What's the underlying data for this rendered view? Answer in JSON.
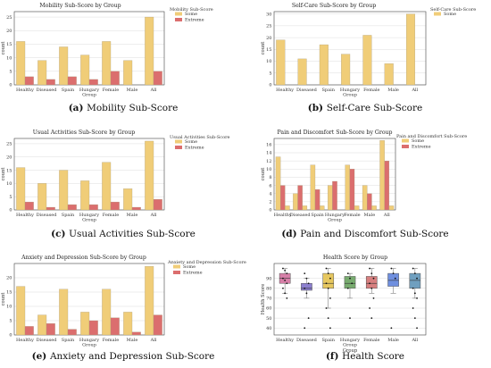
{
  "colors": {
    "some": "#f0cd78",
    "extreme": "#db6e6e",
    "bar_edge": "#a89a7a",
    "grid": "#dddddd",
    "axis": "#444444"
  },
  "chart_data": [
    {
      "type": "bar",
      "title": "Mobility Sub-Score by Group",
      "xlabel": "",
      "ylabel": "count",
      "categories": [
        "Healthy",
        "Diseased",
        "Spain",
        "Hungary Group",
        "Female",
        "Male",
        "All"
      ],
      "series": [
        {
          "name": "Some",
          "values": [
            16,
            9,
            14,
            11,
            16,
            9,
            25
          ]
        },
        {
          "name": "Extreme",
          "values": [
            3,
            2,
            3,
            2,
            5,
            0,
            5
          ]
        }
      ],
      "ylim": [
        0,
        27
      ],
      "yticks": [
        0,
        5,
        10,
        15,
        20,
        25
      ],
      "legend_title": "Mobility Sub-Score",
      "legend_position": "outside-right",
      "caption_label": "(a)",
      "caption_text": "Mobility Sub-Score"
    },
    {
      "type": "bar",
      "title": "Self-Care Sub-Score by Group",
      "xlabel": "",
      "ylabel": "count",
      "categories": [
        "Healthy",
        "Diseased",
        "Spain",
        "Hungary Group",
        "Female",
        "Male",
        "All"
      ],
      "series": [
        {
          "name": "Some",
          "values": [
            19,
            11,
            17,
            13,
            21,
            9,
            30
          ]
        }
      ],
      "ylim": [
        0,
        31
      ],
      "yticks": [
        0,
        5,
        10,
        15,
        20,
        25,
        30
      ],
      "legend_title": "Self-Care Sub-Score",
      "legend_position": "top-right",
      "caption_label": "(b)",
      "caption_text": "Self-Care Sub-Score"
    },
    {
      "type": "bar",
      "title": "Usual Activities Sub-Score by Group",
      "xlabel": "",
      "ylabel": "count",
      "categories": [
        "Healthy",
        "Diseased",
        "Spain",
        "Hungary Group",
        "Female",
        "Male",
        "All"
      ],
      "series": [
        {
          "name": "Some",
          "values": [
            16,
            10,
            15,
            11,
            18,
            8,
            26
          ]
        },
        {
          "name": "Extreme",
          "values": [
            3,
            1,
            2,
            2,
            3,
            1,
            4
          ]
        }
      ],
      "ylim": [
        0,
        27
      ],
      "yticks": [
        0,
        5,
        10,
        15,
        20,
        25
      ],
      "legend_title": "Usual Activities Sub-Score",
      "legend_position": "outside-right",
      "caption_label": "(c)",
      "caption_text": "Usual Activities Sub-Score"
    },
    {
      "type": "bar",
      "title": "Pain and Discomfort Sub-Score by Group",
      "xlabel": "",
      "ylabel": "count",
      "categories": [
        "Healthy",
        "Diseased",
        "Spain",
        "Hungary Group",
        "Female",
        "Male",
        "All"
      ],
      "series": [
        {
          "name": "Some",
          "values": [
            13,
            4,
            11,
            6,
            11,
            6,
            17
          ]
        },
        {
          "name": "Extreme",
          "values": [
            6,
            6,
            5,
            7,
            10,
            4,
            12
          ]
        },
        {
          "name": "",
          "values": [
            1,
            1,
            1,
            0,
            1,
            1,
            1
          ]
        }
      ],
      "ylim": [
        0,
        17.5
      ],
      "yticks": [
        0,
        2,
        4,
        6,
        8,
        10,
        12,
        14,
        16
      ],
      "legend_title": "Pain and Discomfort Sub-Score",
      "legend_position": "outside-right",
      "caption_label": "(d)",
      "caption_text": "Pain and Discomfort Sub-Score"
    },
    {
      "type": "bar",
      "title": "Anxiety and Depression Sub-Score by Group",
      "xlabel": "",
      "ylabel": "count",
      "categories": [
        "Healthy",
        "Diseased",
        "Spain",
        "Hungary Group",
        "Female",
        "Male",
        "All"
      ],
      "series": [
        {
          "name": "Some",
          "values": [
            17,
            7,
            16,
            8,
            16,
            8,
            24
          ]
        },
        {
          "name": "Extreme",
          "values": [
            3,
            4,
            2,
            5,
            6,
            1,
            7
          ]
        }
      ],
      "ylim": [
        0,
        25
      ],
      "yticks": [
        0,
        5,
        10,
        15,
        20
      ],
      "legend_title": "Anxiety and Depression Sub-Score",
      "legend_position": "outside-right",
      "caption_label": "(e)",
      "caption_text": "Anxiety and Depression Sub-Score"
    },
    {
      "type": "box",
      "title": "Health Score by Group",
      "xlabel": "Group",
      "ylabel": "Health Score",
      "categories": [
        "Healthy",
        "Diseased",
        "Spain",
        "Hungary Group",
        "Female",
        "Male",
        "All"
      ],
      "colors": [
        "#d77fa8",
        "#8c7fcf",
        "#e6c75f",
        "#78ab6f",
        "#d77f7f",
        "#6f8fdf",
        "#6f9fbf"
      ],
      "boxes": [
        {
          "q1": 85,
          "median": 90,
          "q3": 95,
          "wmin": 75,
          "wmax": 100,
          "points": [
            100,
            98,
            95,
            90,
            88,
            85,
            80,
            75,
            70
          ]
        },
        {
          "q1": 78,
          "median": 80,
          "q3": 85,
          "wmin": 70,
          "wmax": 90,
          "points": [
            95,
            90,
            85,
            80,
            75,
            50,
            40
          ]
        },
        {
          "q1": 80,
          "median": 85,
          "q3": 95,
          "wmin": 60,
          "wmax": 100,
          "points": [
            100,
            95,
            90,
            85,
            80,
            70,
            60,
            50,
            40
          ]
        },
        {
          "q1": 80,
          "median": 85,
          "q3": 92,
          "wmin": 70,
          "wmax": 95,
          "points": [
            95,
            90,
            85,
            80,
            50
          ]
        },
        {
          "q1": 80,
          "median": 85,
          "q3": 92,
          "wmin": 75,
          "wmax": 100,
          "points": [
            100,
            95,
            90,
            85,
            80,
            70,
            60,
            50
          ]
        },
        {
          "q1": 82,
          "median": 88,
          "q3": 95,
          "wmin": 75,
          "wmax": 100,
          "points": [
            100,
            95,
            90,
            40
          ]
        },
        {
          "q1": 80,
          "median": 88,
          "q3": 95,
          "wmin": 70,
          "wmax": 100,
          "points": [
            100,
            95,
            90,
            80,
            75,
            70,
            60,
            50,
            40
          ]
        }
      ],
      "ylim": [
        33,
        105
      ],
      "yticks": [
        40,
        50,
        60,
        70,
        80,
        90
      ],
      "caption_label": "(f)",
      "caption_text": "Health Score"
    }
  ]
}
